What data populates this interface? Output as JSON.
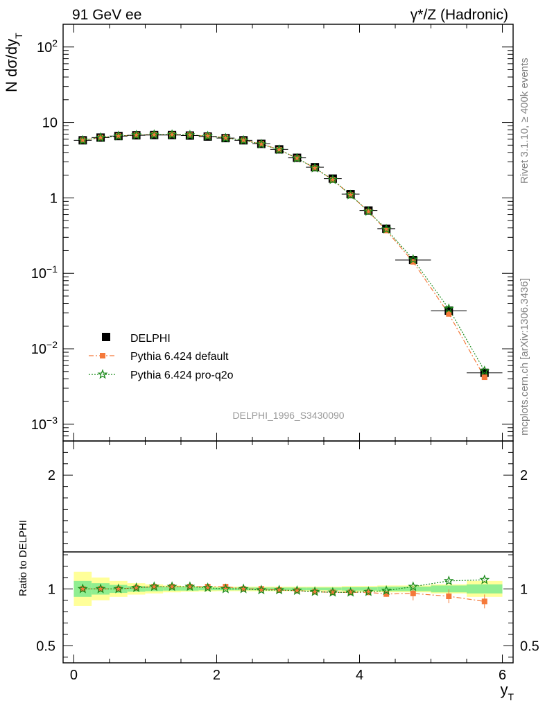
{
  "header": {
    "left_label": "91 GeV ee",
    "right_label": "γ*/Z (Hadronic)"
  },
  "side_text": {
    "rivet": "Rivet 3.1.10, ≥ 400k events",
    "mcplots": "mcplots.cern.ch [arXiv:1306.3436]"
  },
  "colors": {
    "data": "#000000",
    "default": "#f5793a",
    "proq2o": "#1a8a1a",
    "band_inner": "#90ee90",
    "band_outer": "#ffff99"
  },
  "chart_data": [
    {
      "type": "line",
      "scale": "log",
      "title": "DELPHI_1996_S3430090",
      "xlabel": "y_T",
      "ylabel": "N dσ/dy_T",
      "xlim": [
        -0.15,
        6.15
      ],
      "ylim": [
        0.0006,
        200
      ],
      "yticks": [
        {
          "value": 0.001,
          "base": "10",
          "exp": "−3"
        },
        {
          "value": 0.01,
          "base": "10",
          "exp": "−2"
        },
        {
          "value": 0.1,
          "base": "10",
          "exp": "−1"
        },
        {
          "value": 1,
          "base": "1",
          "exp": ""
        },
        {
          "value": 10,
          "base": "10",
          "exp": ""
        },
        {
          "value": 100,
          "base": "10",
          "exp": "2"
        }
      ],
      "x": [
        0.125,
        0.375,
        0.625,
        0.875,
        1.125,
        1.375,
        1.625,
        1.875,
        2.125,
        2.375,
        2.625,
        2.875,
        3.125,
        3.375,
        3.625,
        3.875,
        4.125,
        4.375,
        4.75,
        5.25,
        5.75
      ],
      "xerr": [
        0.125,
        0.125,
        0.125,
        0.125,
        0.125,
        0.125,
        0.125,
        0.125,
        0.125,
        0.125,
        0.125,
        0.125,
        0.125,
        0.125,
        0.125,
        0.125,
        0.125,
        0.125,
        0.25,
        0.25,
        0.25
      ],
      "series": [
        {
          "name": "DELPHI",
          "style": "data",
          "values": [
            5.8,
            6.3,
            6.6,
            6.75,
            6.8,
            6.8,
            6.7,
            6.5,
            6.2,
            5.8,
            5.2,
            4.4,
            3.4,
            2.55,
            1.8,
            1.12,
            0.68,
            0.39,
            0.15,
            0.032,
            0.0048
          ]
        },
        {
          "name": "Pythia 6.424 default",
          "style": "default",
          "values": [
            5.8,
            6.3,
            6.6,
            6.8,
            6.9,
            6.9,
            6.8,
            6.6,
            6.3,
            5.8,
            5.2,
            4.35,
            3.35,
            2.48,
            1.74,
            1.09,
            0.66,
            0.37,
            0.142,
            0.029,
            0.0042
          ]
        },
        {
          "name": "Pythia 6.424 pro-q2o",
          "style": "proq2o",
          "values": [
            5.8,
            6.3,
            6.6,
            6.8,
            6.9,
            6.9,
            6.8,
            6.6,
            6.2,
            5.8,
            5.15,
            4.35,
            3.35,
            2.48,
            1.74,
            1.09,
            0.66,
            0.385,
            0.153,
            0.034,
            0.0051
          ]
        }
      ]
    },
    {
      "type": "line",
      "title": "",
      "xlabel": "y_T",
      "ylabel": "Ratio to DELPHI",
      "xlim": [
        -0.15,
        6.15
      ],
      "ylim": [
        0.35,
        2.3
      ],
      "yticks": [
        0.5,
        1,
        2
      ],
      "ytick_labels": [
        "0.5",
        "1",
        "2"
      ],
      "xticks": [
        0,
        2,
        4,
        6
      ],
      "xtick_labels": [
        "0",
        "2",
        "4",
        "6"
      ],
      "x": [
        0.125,
        0.375,
        0.625,
        0.875,
        1.125,
        1.375,
        1.625,
        1.875,
        2.125,
        2.375,
        2.625,
        2.875,
        3.125,
        3.375,
        3.625,
        3.875,
        4.125,
        4.375,
        4.75,
        5.25,
        5.75
      ],
      "band_inner": [
        0.07,
        0.05,
        0.035,
        0.025,
        0.02,
        0.015,
        0.015,
        0.012,
        0.012,
        0.012,
        0.012,
        0.012,
        0.012,
        0.012,
        0.012,
        0.015,
        0.015,
        0.02,
        0.02,
        0.03,
        0.04
      ],
      "band_outer": [
        0.15,
        0.1,
        0.07,
        0.05,
        0.04,
        0.03,
        0.025,
        0.022,
        0.02,
        0.02,
        0.02,
        0.02,
        0.02,
        0.02,
        0.02,
        0.025,
        0.025,
        0.03,
        0.03,
        0.04,
        0.07
      ],
      "series": [
        {
          "name": "Pythia 6.424 default",
          "style": "default",
          "values": [
            1.0,
            1.0,
            1.0,
            1.01,
            1.02,
            1.02,
            1.02,
            1.02,
            1.02,
            1.0,
            1.0,
            0.99,
            0.985,
            0.975,
            0.97,
            0.97,
            0.97,
            0.955,
            0.96,
            0.935,
            0.89
          ]
        },
        {
          "name": "Pythia 6.424 pro-q2o",
          "style": "proq2o",
          "values": [
            1.0,
            1.0,
            1.0,
            1.01,
            1.02,
            1.02,
            1.02,
            1.01,
            1.0,
            1.0,
            0.99,
            0.99,
            0.985,
            0.975,
            0.97,
            0.97,
            0.975,
            0.985,
            1.02,
            1.07,
            1.08
          ]
        }
      ]
    }
  ]
}
